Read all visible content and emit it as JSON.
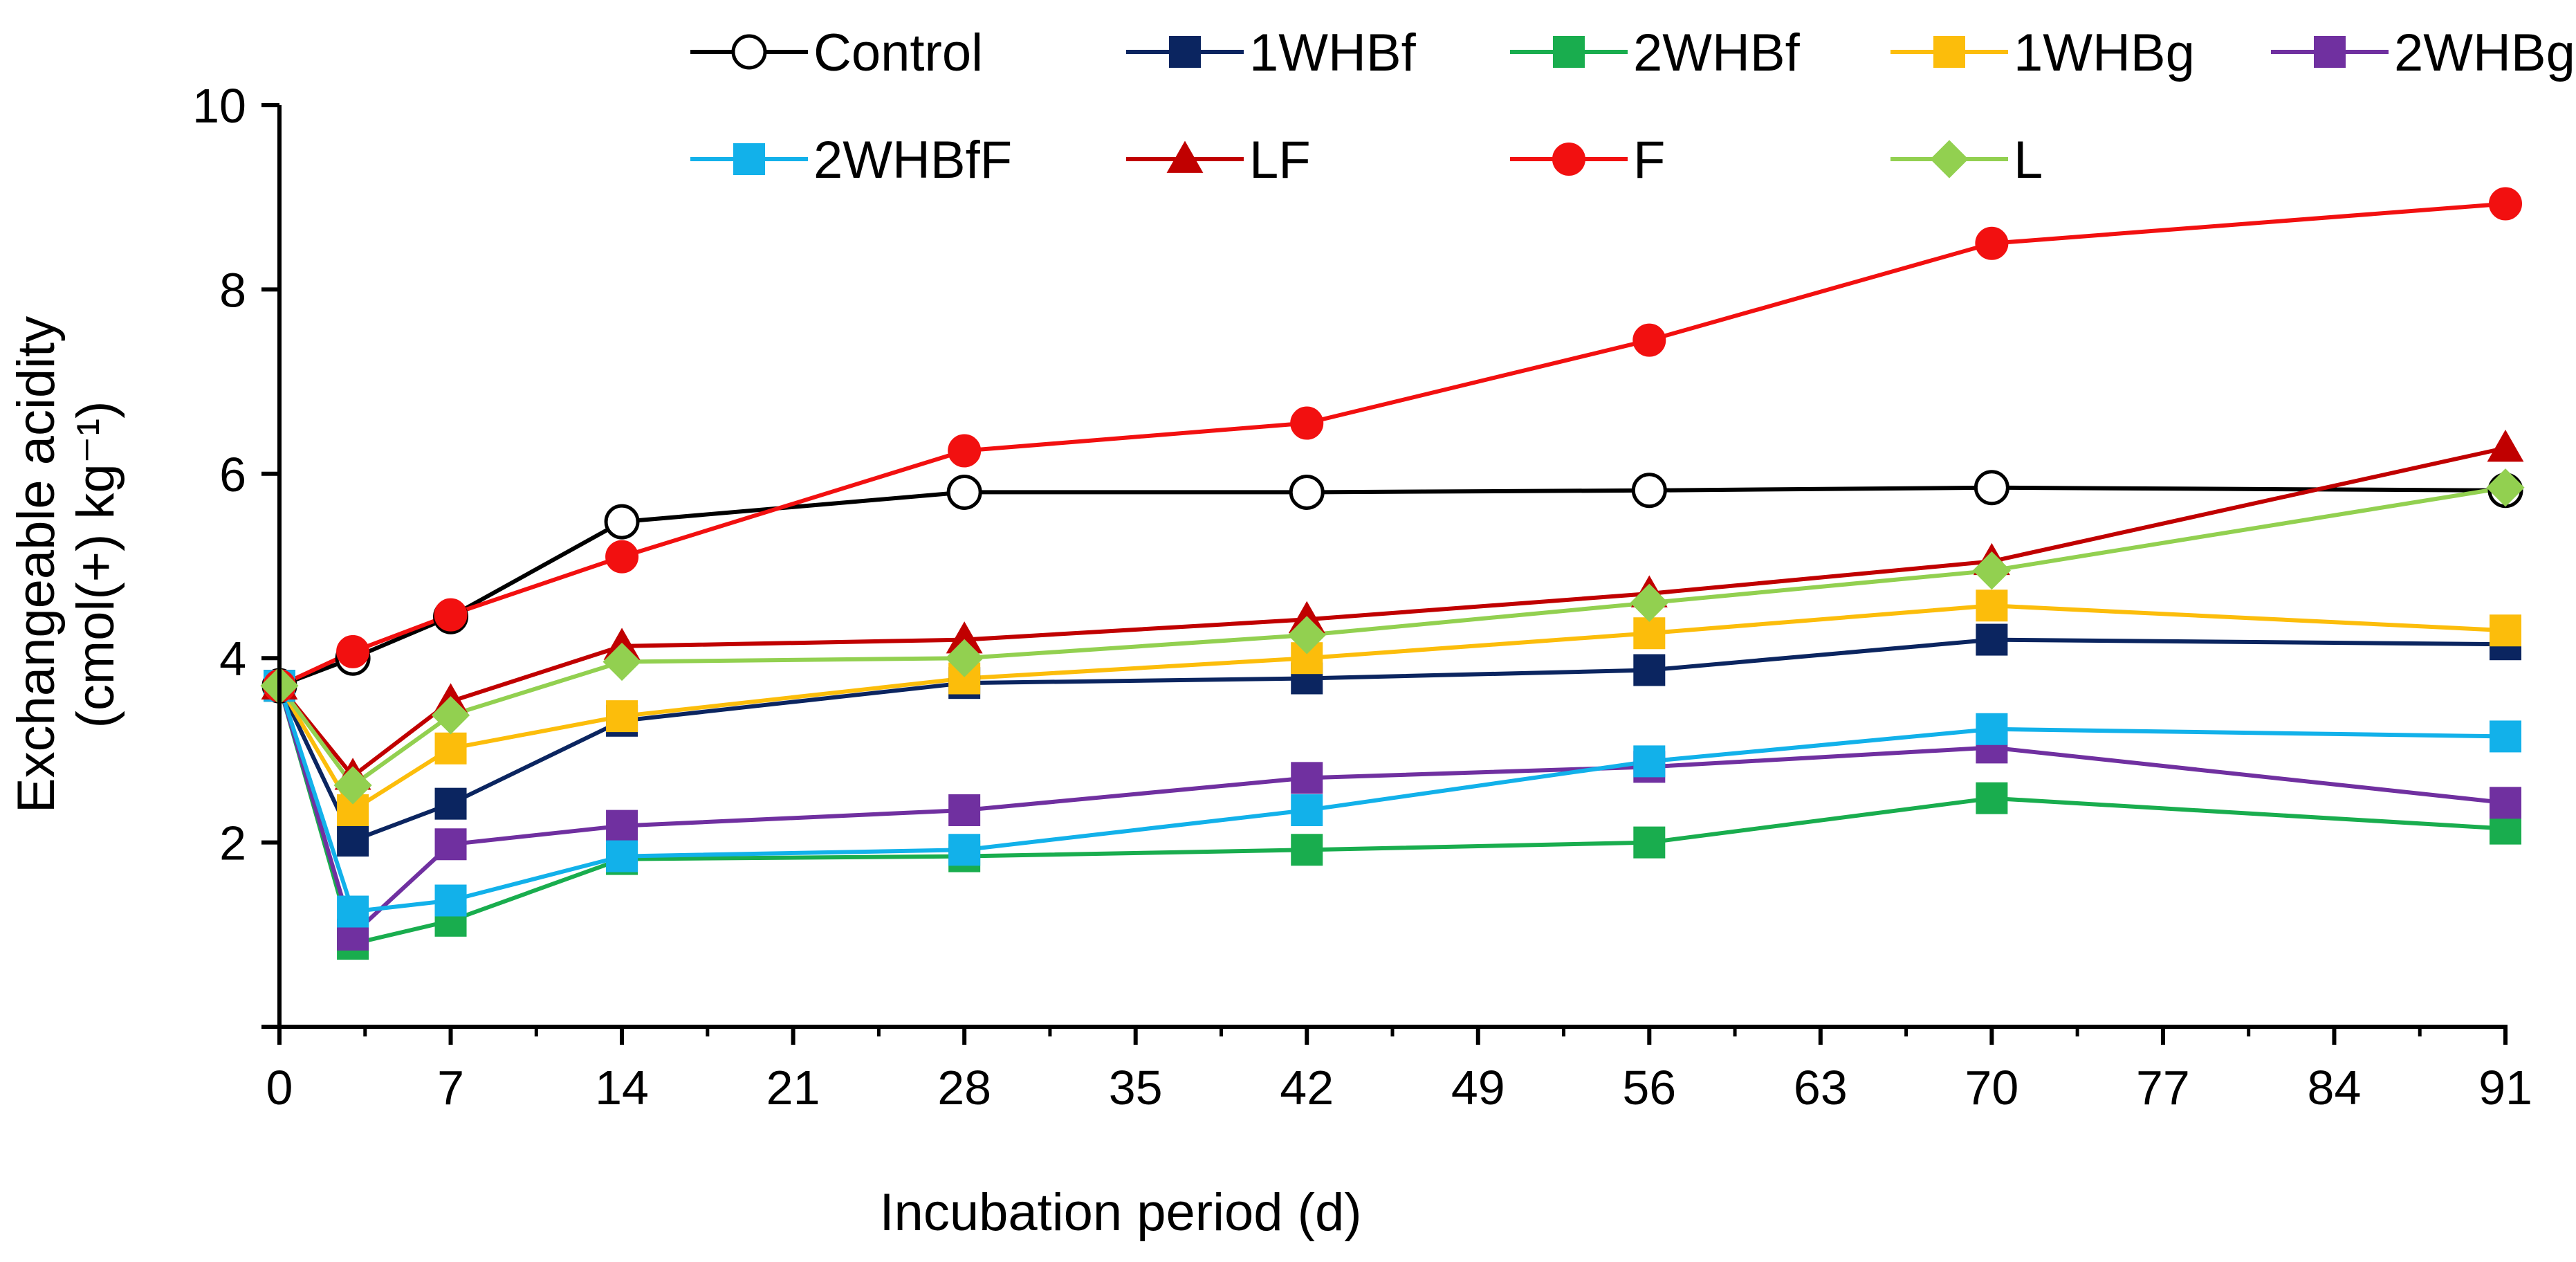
{
  "chart_data": {
    "type": "line",
    "title": "",
    "xlabel": "Incubation period (d)",
    "ylabel_line1": "Exchangeable acidity",
    "ylabel_line2": "(cmol(+) kg⁻¹)",
    "xlim": [
      0,
      91
    ],
    "ylim": [
      0,
      10
    ],
    "xticks": [
      0,
      7,
      14,
      21,
      28,
      35,
      42,
      49,
      56,
      63,
      70,
      77,
      84,
      91
    ],
    "yticks": [
      2,
      4,
      6,
      8,
      10
    ],
    "grid": false,
    "legend_position": "top",
    "x": [
      0,
      3,
      7,
      14,
      28,
      42,
      56,
      70,
      91
    ],
    "series": [
      {
        "name": "Control",
        "color": "#000000",
        "marker": "open-circle",
        "values": [
          3.7,
          4.0,
          4.45,
          5.48,
          5.8,
          5.8,
          5.82,
          5.85,
          5.82
        ]
      },
      {
        "name": "1WHBf",
        "color": "#0b2560",
        "marker": "square",
        "values": [
          3.7,
          2.02,
          2.42,
          3.32,
          3.73,
          3.78,
          3.87,
          4.2,
          4.15
        ]
      },
      {
        "name": "2WHBf",
        "color": "#19ad4e",
        "marker": "square",
        "values": [
          3.7,
          0.9,
          1.15,
          1.82,
          1.85,
          1.92,
          2.0,
          2.48,
          2.15
        ]
      },
      {
        "name": "1WHBg",
        "color": "#fcbd0b",
        "marker": "square",
        "values": [
          3.7,
          2.35,
          3.02,
          3.37,
          3.78,
          4.0,
          4.27,
          4.57,
          4.3
        ]
      },
      {
        "name": "2WHBg",
        "color": "#7030a0",
        "marker": "square",
        "values": [
          3.7,
          1.0,
          1.98,
          2.18,
          2.35,
          2.7,
          2.82,
          3.03,
          2.43
        ]
      },
      {
        "name": "2WHBfF",
        "color": "#12b1ea",
        "marker": "square",
        "values": [
          3.7,
          1.25,
          1.37,
          1.85,
          1.92,
          2.35,
          2.88,
          3.23,
          3.15
        ]
      },
      {
        "name": "LF",
        "color": "#c00000",
        "marker": "triangle",
        "values": [
          3.7,
          2.72,
          3.53,
          4.13,
          4.2,
          4.42,
          4.7,
          5.05,
          6.28
        ]
      },
      {
        "name": "F",
        "color": "#f21010",
        "marker": "circle",
        "values": [
          3.7,
          4.07,
          4.47,
          5.1,
          6.25,
          6.55,
          7.45,
          8.5,
          8.93
        ]
      },
      {
        "name": "L",
        "color": "#92d050",
        "marker": "diamond",
        "values": [
          3.7,
          2.62,
          3.38,
          3.96,
          4.0,
          4.25,
          4.6,
          4.95,
          5.85
        ]
      }
    ]
  }
}
